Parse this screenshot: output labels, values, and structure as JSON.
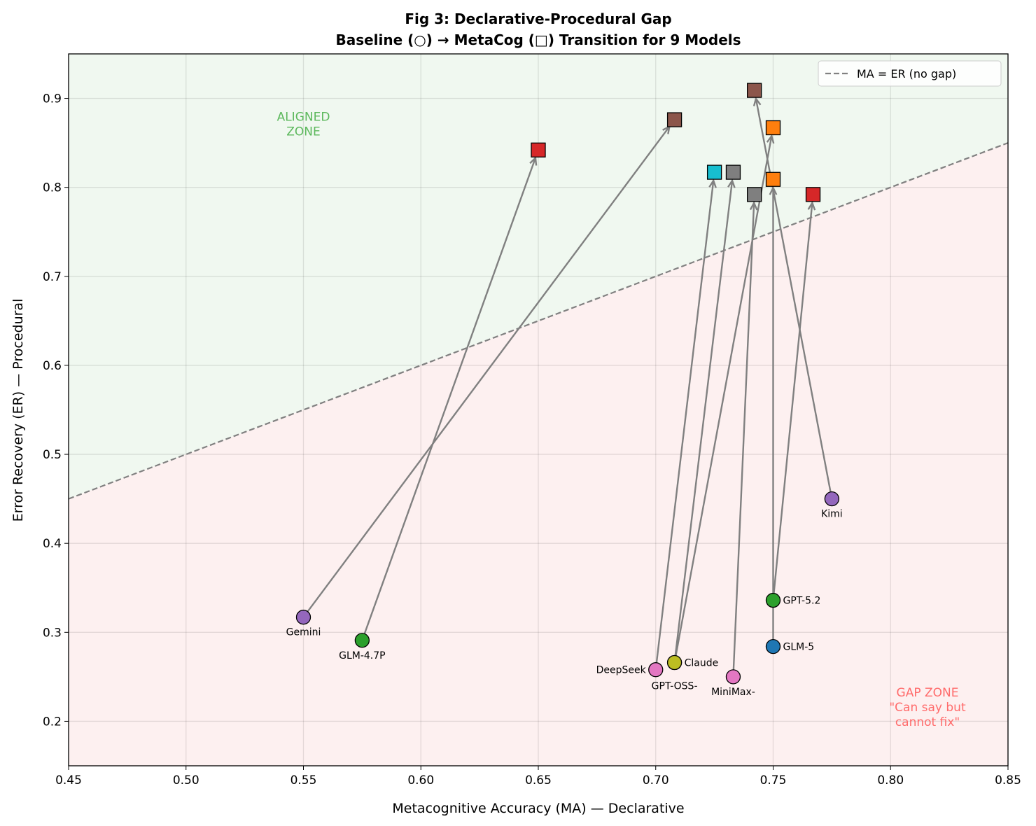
{
  "chart_data": {
    "type": "scatter",
    "title": "Fig 3: Declarative-Procedural Gap",
    "subtitle": "Baseline (○) → MetaCog (□) Transition for 9 Models",
    "xlabel": "Metacognitive Accuracy (MA) — Declarative",
    "ylabel": "Error Recovery (ER) — Procedural",
    "xlim": [
      0.45,
      0.85
    ],
    "ylim": [
      0.15,
      0.95
    ],
    "xticks": [
      "0.45",
      "0.50",
      "0.55",
      "0.60",
      "0.65",
      "0.70",
      "0.75",
      "0.80",
      "0.85"
    ],
    "yticks": [
      "0.2",
      "0.3",
      "0.4",
      "0.5",
      "0.6",
      "0.7",
      "0.8",
      "0.9"
    ],
    "grid": true,
    "legend": {
      "placement": "top-right",
      "entries": [
        "MA = ER (no gap)"
      ]
    },
    "reference_line": {
      "label": "MA = ER (no gap)",
      "color": "#808080",
      "style": "dashed"
    },
    "zones": {
      "aligned": {
        "label_lines": [
          "ALIGNED",
          "ZONE"
        ],
        "color": "#5cb85c",
        "fill": "#f0f8f0"
      },
      "gap": {
        "label_lines": [
          "GAP ZONE",
          "\"Can say but",
          "cannot fix\""
        ],
        "color": "#ff6b6b",
        "fill": "#fdf0f0"
      }
    },
    "models": [
      {
        "name": "Gemini",
        "baseline": [
          0.55,
          0.317
        ],
        "metacog": [
          0.708,
          0.876
        ],
        "baseline_color": "#9467bd",
        "metacog_color": "#8c564b"
      },
      {
        "name": "GLM-4.7P",
        "baseline": [
          0.575,
          0.291
        ],
        "metacog": [
          0.65,
          0.842
        ],
        "baseline_color": "#2ca02c",
        "metacog_color": "#d62728"
      },
      {
        "name": "DeepSeek",
        "baseline": [
          0.7,
          0.258
        ],
        "metacog": [
          0.725,
          0.817
        ],
        "baseline_color": "#e377c2",
        "metacog_color": "#17becf"
      },
      {
        "name": "GPT-OSS-",
        "baseline": [
          0.708,
          0.266
        ],
        "metacog": [
          0.75,
          0.867
        ],
        "baseline_color": "#7f7f7f",
        "metacog_color": "#ff7f0e"
      },
      {
        "name": "Claude",
        "baseline": [
          0.708,
          0.266
        ],
        "metacog": [
          0.733,
          0.817
        ],
        "baseline_color": "#bcbd22",
        "metacog_color": "#7f7f7f"
      },
      {
        "name": "MiniMax-",
        "baseline": [
          0.733,
          0.25
        ],
        "metacog": [
          0.742,
          0.792
        ],
        "baseline_color": "#e377c2",
        "metacog_color": "#7f7f7f"
      },
      {
        "name": "GLM-5",
        "baseline": [
          0.75,
          0.284
        ],
        "metacog": [
          0.75,
          0.809
        ],
        "baseline_color": "#1f77b4",
        "metacog_color": "#ff7f0e"
      },
      {
        "name": "GPT-5.2",
        "baseline": [
          0.75,
          0.336
        ],
        "metacog": [
          0.767,
          0.792
        ],
        "baseline_color": "#2ca02c",
        "metacog_color": "#d62728"
      },
      {
        "name": "Kimi",
        "baseline": [
          0.775,
          0.45
        ],
        "metacog": [
          0.742,
          0.909
        ],
        "baseline_color": "#9467bd",
        "metacog_color": "#8c564b"
      }
    ]
  }
}
